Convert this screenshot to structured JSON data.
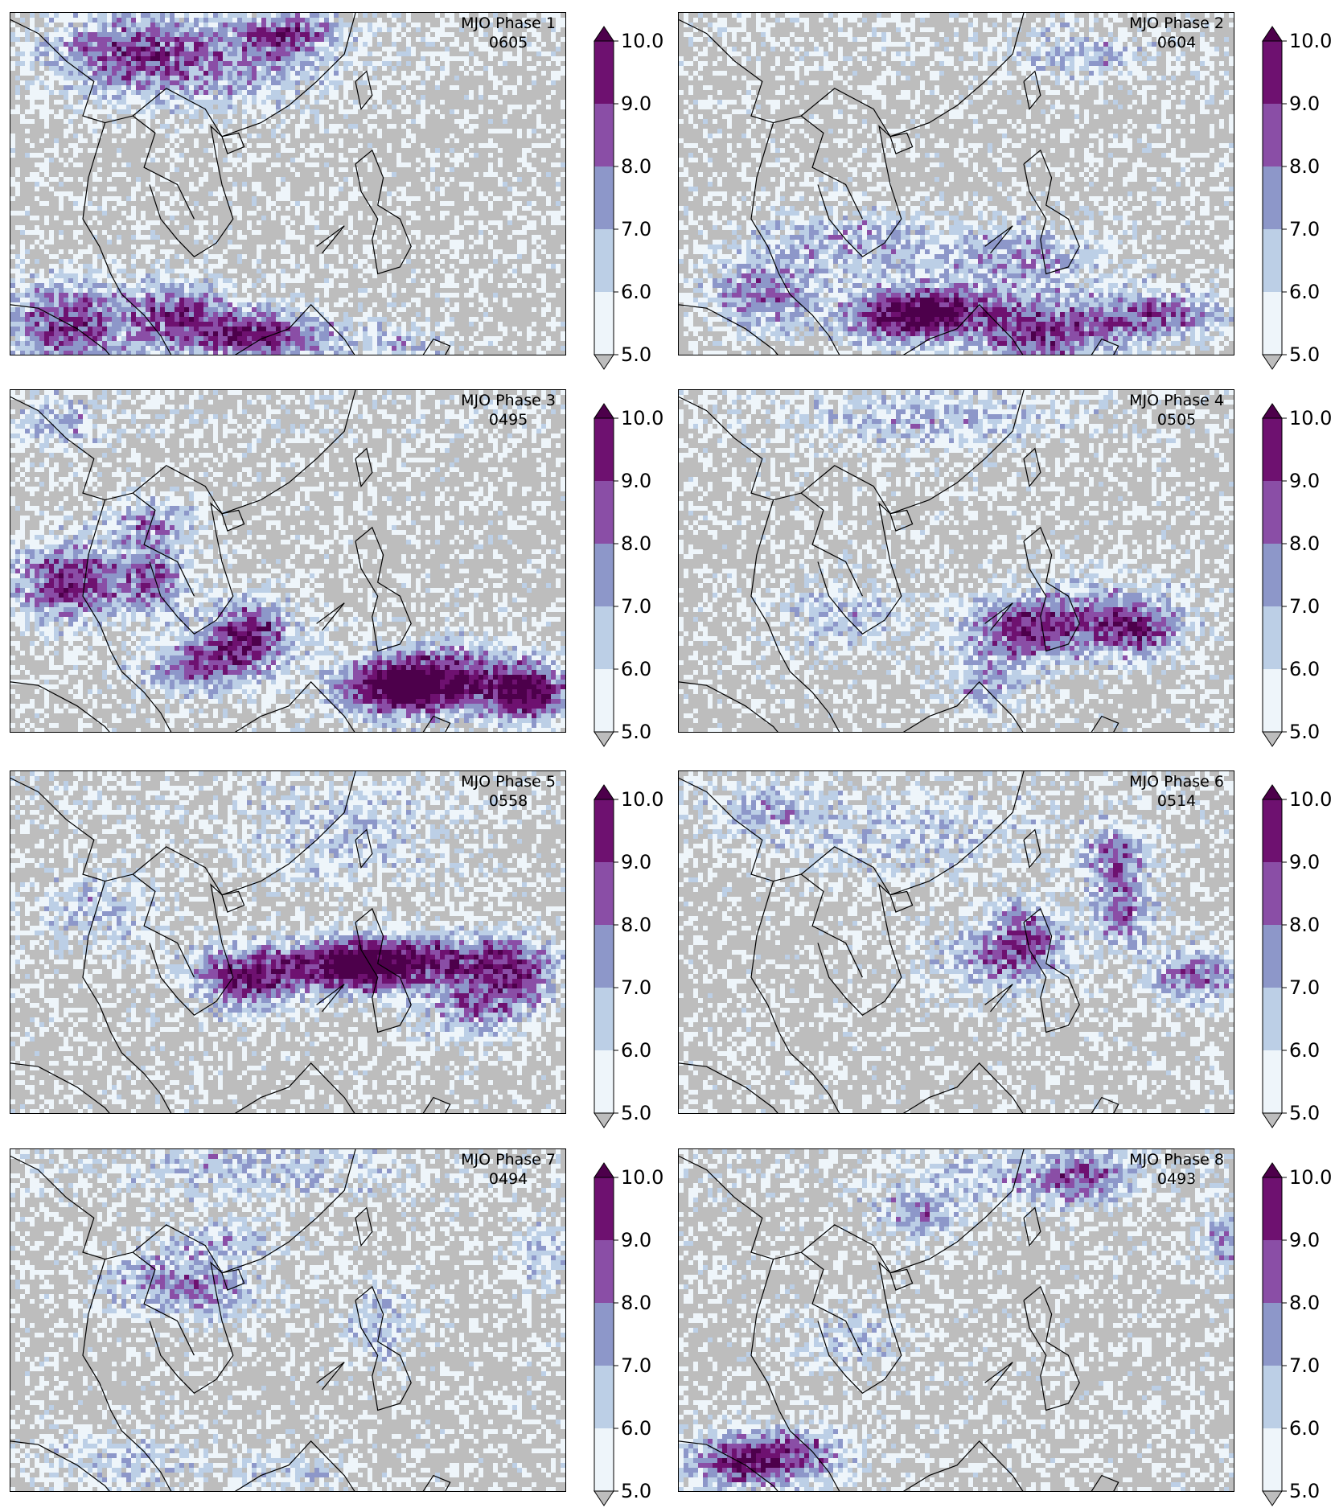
{
  "panels": [
    {
      "title": "MJO Phase 1",
      "count": "0605",
      "blobs": [
        [
          0.1,
          0.9,
          0.12,
          0.14,
          2.2
        ],
        [
          0.3,
          0.86,
          0.09,
          0.1,
          1.8
        ],
        [
          0.45,
          0.93,
          0.14,
          0.08,
          2.4
        ],
        [
          0.2,
          0.12,
          0.15,
          0.12,
          1.4
        ],
        [
          0.38,
          0.15,
          0.22,
          0.14,
          1.2
        ],
        [
          0.5,
          0.06,
          0.08,
          0.06,
          1.6
        ],
        [
          0.7,
          0.95,
          0.08,
          0.06,
          1.0
        ]
      ]
    },
    {
      "title": "MJO Phase 2",
      "count": "0604",
      "blobs": [
        [
          0.15,
          0.82,
          0.1,
          0.1,
          1.8
        ],
        [
          0.38,
          0.88,
          0.1,
          0.08,
          2.2
        ],
        [
          0.48,
          0.86,
          0.1,
          0.08,
          1.9
        ],
        [
          0.66,
          0.92,
          0.12,
          0.1,
          2.3
        ],
        [
          0.82,
          0.87,
          0.08,
          0.08,
          1.5
        ],
        [
          0.92,
          0.87,
          0.07,
          0.07,
          1.3
        ],
        [
          0.3,
          0.66,
          0.2,
          0.1,
          1.2
        ],
        [
          0.62,
          0.7,
          0.15,
          0.1,
          1.3
        ],
        [
          0.72,
          0.13,
          0.12,
          0.08,
          1.0
        ]
      ]
    },
    {
      "title": "MJO Phase 3",
      "count": "0495",
      "blobs": [
        [
          0.1,
          0.55,
          0.1,
          0.12,
          2.4
        ],
        [
          0.43,
          0.7,
          0.08,
          0.1,
          2.5
        ],
        [
          0.33,
          0.8,
          0.1,
          0.08,
          1.9
        ],
        [
          0.78,
          0.83,
          0.17,
          0.1,
          2.5
        ],
        [
          0.93,
          0.88,
          0.07,
          0.08,
          2.3
        ],
        [
          0.68,
          0.87,
          0.1,
          0.08,
          1.9
        ],
        [
          0.26,
          0.55,
          0.07,
          0.1,
          1.8
        ],
        [
          0.25,
          0.38,
          0.08,
          0.08,
          1.5
        ],
        [
          0.08,
          0.1,
          0.08,
          0.08,
          1.0
        ]
      ]
    },
    {
      "title": "MJO Phase 4",
      "count": "0505",
      "blobs": [
        [
          0.7,
          0.65,
          0.2,
          0.12,
          1.3
        ],
        [
          0.82,
          0.69,
          0.08,
          0.08,
          1.7
        ],
        [
          0.62,
          0.7,
          0.1,
          0.08,
          1.5
        ],
        [
          0.55,
          0.85,
          0.07,
          0.1,
          1.2
        ],
        [
          0.28,
          0.65,
          0.12,
          0.12,
          1.0
        ],
        [
          0.45,
          0.08,
          0.25,
          0.1,
          0.9
        ]
      ]
    },
    {
      "title": "MJO Phase 5",
      "count": "0558",
      "blobs": [
        [
          0.5,
          0.57,
          0.18,
          0.08,
          1.8
        ],
        [
          0.74,
          0.55,
          0.15,
          0.08,
          2.2
        ],
        [
          0.9,
          0.58,
          0.08,
          0.1,
          1.9
        ],
        [
          0.62,
          0.55,
          0.08,
          0.07,
          1.5
        ],
        [
          0.42,
          0.62,
          0.08,
          0.1,
          1.4
        ],
        [
          0.82,
          0.7,
          0.1,
          0.08,
          1.4
        ],
        [
          0.15,
          0.4,
          0.12,
          0.12,
          1.0
        ],
        [
          0.6,
          0.2,
          0.2,
          0.15,
          0.9
        ]
      ]
    },
    {
      "title": "MJO Phase 6",
      "count": "0514",
      "blobs": [
        [
          0.79,
          0.4,
          0.06,
          0.1,
          1.9
        ],
        [
          0.78,
          0.24,
          0.06,
          0.08,
          1.8
        ],
        [
          0.92,
          0.59,
          0.09,
          0.08,
          1.9
        ],
        [
          0.62,
          0.47,
          0.07,
          0.1,
          1.6
        ],
        [
          0.56,
          0.55,
          0.13,
          0.1,
          1.3
        ],
        [
          0.4,
          0.2,
          0.25,
          0.12,
          0.9
        ],
        [
          0.15,
          0.1,
          0.1,
          0.08,
          0.9
        ]
      ]
    },
    {
      "title": "MJO Phase 7",
      "count": "0494",
      "blobs": [
        [
          0.26,
          0.38,
          0.1,
          0.1,
          1.5
        ],
        [
          0.38,
          0.42,
          0.08,
          0.08,
          1.2
        ],
        [
          0.39,
          0.26,
          0.1,
          0.06,
          1.1
        ],
        [
          0.66,
          0.5,
          0.06,
          0.12,
          1.2
        ],
        [
          0.45,
          0.05,
          0.25,
          0.1,
          0.9
        ],
        [
          0.95,
          0.3,
          0.06,
          0.1,
          1.0
        ],
        [
          0.2,
          0.9,
          0.15,
          0.08,
          0.9
        ],
        [
          0.5,
          0.93,
          0.12,
          0.06,
          0.8
        ]
      ]
    },
    {
      "title": "MJO Phase 8",
      "count": "0493",
      "blobs": [
        [
          0.1,
          0.9,
          0.1,
          0.08,
          2.1
        ],
        [
          0.22,
          0.88,
          0.1,
          0.08,
          1.7
        ],
        [
          0.43,
          0.2,
          0.07,
          0.07,
          1.6
        ],
        [
          0.73,
          0.08,
          0.08,
          0.08,
          1.3
        ],
        [
          0.98,
          0.26,
          0.05,
          0.08,
          1.5
        ],
        [
          0.6,
          0.08,
          0.2,
          0.1,
          0.9
        ],
        [
          0.31,
          0.55,
          0.1,
          0.1,
          1.0
        ]
      ]
    }
  ],
  "colorbar": {
    "ticks": [
      "5.0",
      "6.0",
      "7.0",
      "8.0",
      "9.0",
      "10.0"
    ],
    "colors": [
      "#eef5fa",
      "#bccfe6",
      "#8d97c9",
      "#8a4ea6",
      "#6e1170"
    ],
    "over_color": "#4d004b",
    "under_color": "#bdbdbd"
  },
  "map_style": {
    "land_sea_background": "#bdbdbd",
    "coastline": "#000000"
  }
}
